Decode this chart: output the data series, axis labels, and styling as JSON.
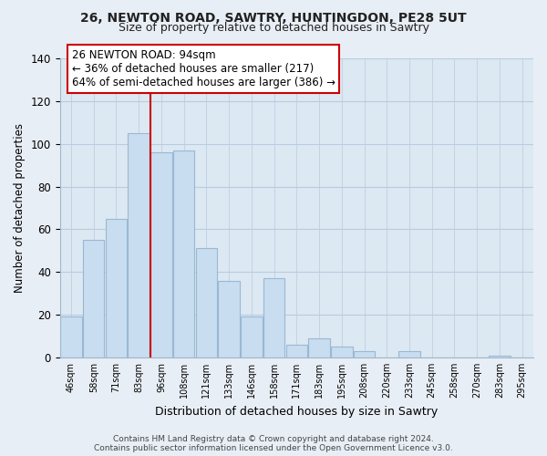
{
  "title1": "26, NEWTON ROAD, SAWTRY, HUNTINGDON, PE28 5UT",
  "title2": "Size of property relative to detached houses in Sawtry",
  "xlabel": "Distribution of detached houses by size in Sawtry",
  "ylabel": "Number of detached properties",
  "categories": [
    "46sqm",
    "58sqm",
    "71sqm",
    "83sqm",
    "96sqm",
    "108sqm",
    "121sqm",
    "133sqm",
    "146sqm",
    "158sqm",
    "171sqm",
    "183sqm",
    "195sqm",
    "208sqm",
    "220sqm",
    "233sqm",
    "245sqm",
    "258sqm",
    "270sqm",
    "283sqm",
    "295sqm"
  ],
  "values": [
    19,
    55,
    65,
    105,
    96,
    97,
    51,
    36,
    19,
    37,
    6,
    9,
    5,
    3,
    0,
    3,
    0,
    0,
    0,
    1,
    0
  ],
  "bar_color": "#c8ddef",
  "bar_edge_color": "#9ab8d4",
  "vline_color": "#cc0000",
  "ylim": [
    0,
    140
  ],
  "yticks": [
    0,
    20,
    40,
    60,
    80,
    100,
    120,
    140
  ],
  "annotation_title": "26 NEWTON ROAD: 94sqm",
  "annotation_line1": "← 36% of detached houses are smaller (217)",
  "annotation_line2": "64% of semi-detached houses are larger (386) →",
  "annotation_box_color": "#ffffff",
  "annotation_box_edge": "#cc0000",
  "footnote1": "Contains HM Land Registry data © Crown copyright and database right 2024.",
  "footnote2": "Contains public sector information licensed under the Open Government Licence v3.0.",
  "bg_color": "#e8eef5",
  "plot_bg_color": "#dce8f2",
  "grid_color": "#b8cce0"
}
